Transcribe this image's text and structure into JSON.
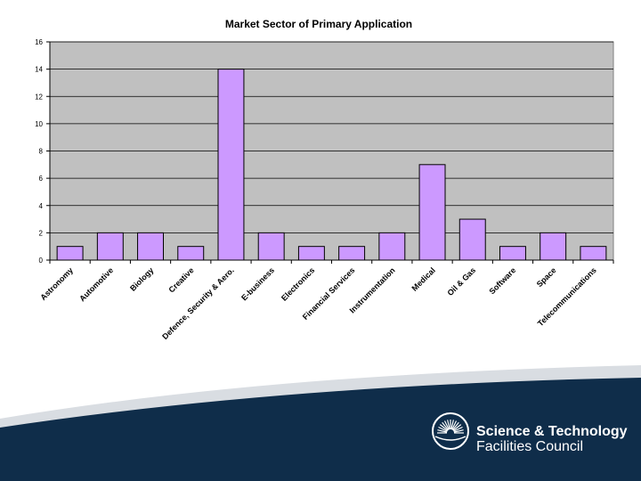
{
  "colors": {
    "plot_bg": "#c0c0c0",
    "bar_fill": "#cc99ff",
    "bar_stroke": "#000000",
    "footer_dark": "#0f2d4a",
    "footer_light": "#d9dde2"
  },
  "chart_data": {
    "type": "bar",
    "title": "Market Sector of Primary Application",
    "xlabel": "",
    "ylabel": "",
    "ylim": [
      0,
      16
    ],
    "yticks": [
      0,
      2,
      4,
      6,
      8,
      10,
      12,
      14,
      16
    ],
    "categories": [
      "Astronomy",
      "Automotive",
      "Biology",
      "Creative",
      "Defence, Security & Aero.",
      "E-business",
      "Electronics",
      "Financial Services",
      "Instrumentation",
      "Medical",
      "Oil & Gas",
      "Software",
      "Space",
      "Telecommunications"
    ],
    "values": [
      1,
      2,
      2,
      1,
      14,
      2,
      1,
      1,
      2,
      7,
      3,
      1,
      2,
      1
    ],
    "grid": true,
    "legend": "none"
  },
  "footer": {
    "logo_icon": "stfc-sunburst-icon",
    "org_line1": "Science & Technology",
    "org_line2": "Facilities Council"
  }
}
